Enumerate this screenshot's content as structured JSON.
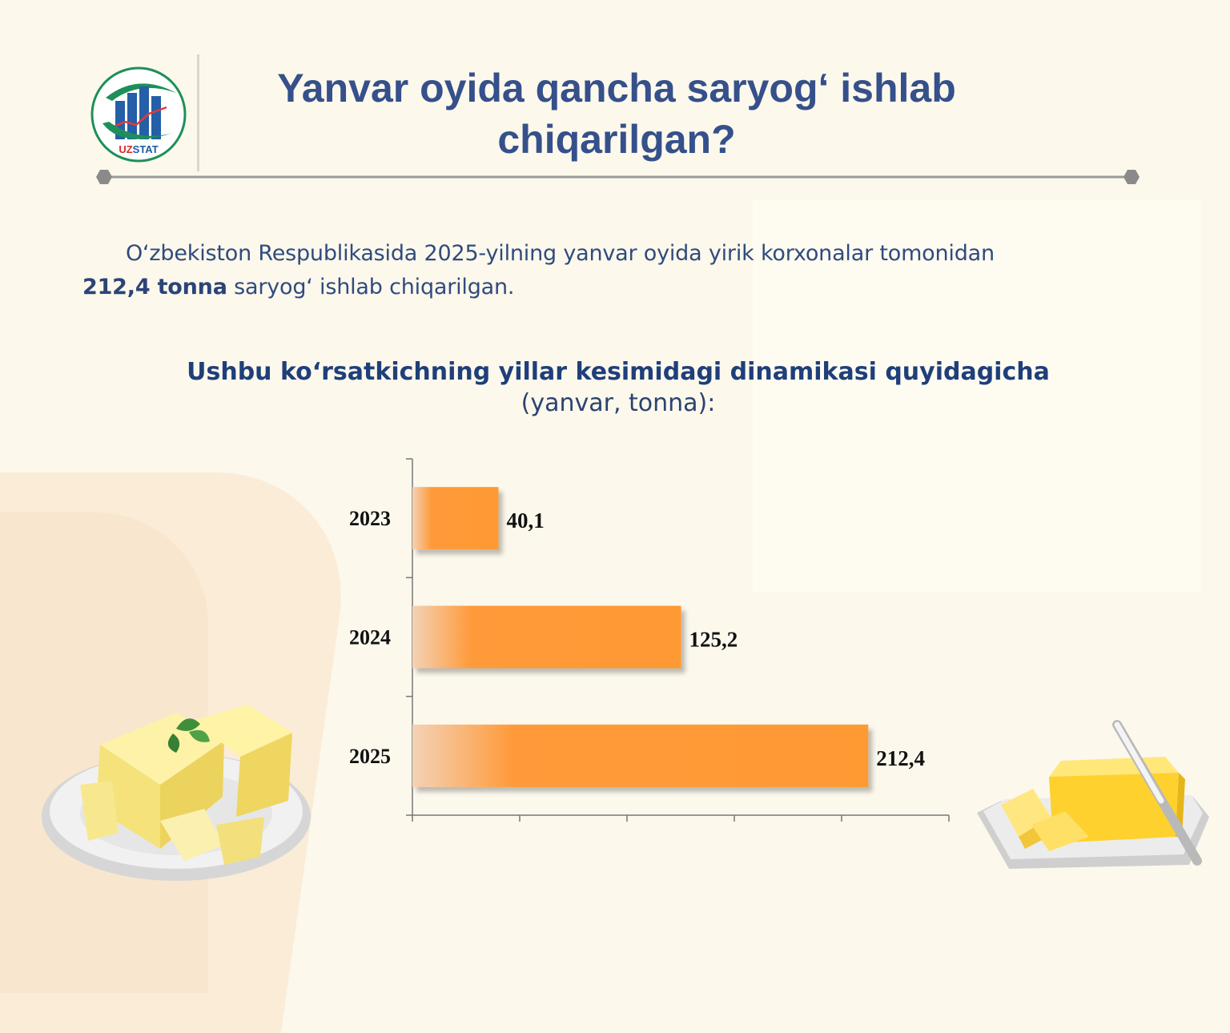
{
  "header": {
    "logo_text": "UZSTAT",
    "title": "Yanvar oyida qancha saryog‘ ishlab chiqarilgan?"
  },
  "intro": {
    "text_before": "O‘zbekiston Respublikasida 2025-yilning yanvar oyida yirik korxonalar tomonidan",
    "highlight": "212,4 tonna",
    "text_after": " saryog‘ ishlab chiqarilgan."
  },
  "chart_data": {
    "type": "bar",
    "orientation": "horizontal",
    "title": "Ushbu ko‘rsatkichning yillar kesimidagi dinamikasi quyidagicha",
    "subtitle": "(yanvar, tonna):",
    "categories": [
      "2023",
      "2024",
      "2025"
    ],
    "values": [
      40.1,
      125.2,
      212.4
    ],
    "value_labels": [
      "40,1",
      "125,2",
      "212,4"
    ],
    "xlim": [
      0,
      250
    ],
    "grid": false,
    "bar_color": "#ff9933"
  },
  "decor": {
    "left_image": "butter-on-plate-with-mint",
    "right_image": "butter-dish-with-knife"
  }
}
